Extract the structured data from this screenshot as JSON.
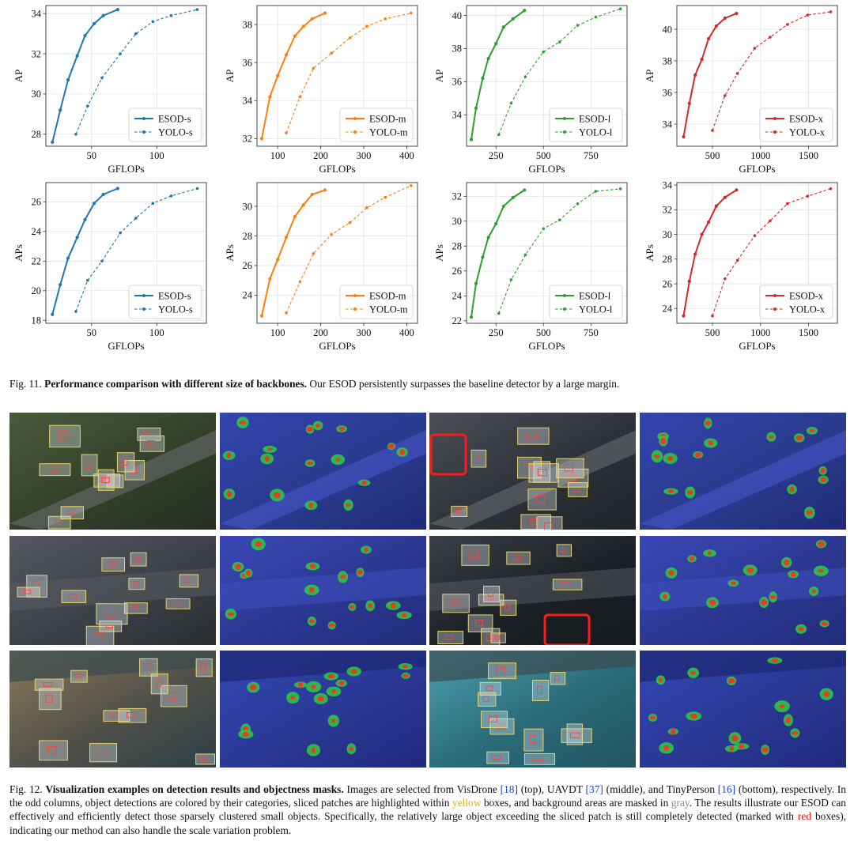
{
  "chart_data": [
    {
      "type": "line",
      "row": "top",
      "xlabel": "GFLOPs",
      "ylabel": "AP",
      "xlim": [
        15,
        138
      ],
      "ylim": [
        27.4,
        34.4
      ],
      "xticks": [
        50,
        100
      ],
      "yticks": [
        28,
        30,
        32,
        34
      ],
      "legend": "lower-right",
      "grid": true,
      "color": "#1f77b4",
      "series": [
        {
          "name": "ESOD-s",
          "style": "solid",
          "x": [
            20,
            26,
            32,
            39,
            45,
            52,
            59,
            70
          ],
          "y": [
            27.6,
            29.2,
            30.7,
            31.9,
            32.9,
            33.5,
            33.9,
            34.2
          ]
        },
        {
          "name": "YOLO-s",
          "style": "dashed",
          "x": [
            38,
            47,
            58,
            72,
            84,
            97,
            111,
            131
          ],
          "y": [
            28.0,
            29.4,
            30.8,
            32.0,
            33.0,
            33.6,
            33.9,
            34.2
          ]
        }
      ]
    },
    {
      "type": "line",
      "row": "top",
      "xlabel": "GFLOPs",
      "ylabel": "AP",
      "xlim": [
        52,
        425
      ],
      "ylim": [
        31.6,
        39.0
      ],
      "xticks": [
        100,
        200,
        300,
        400
      ],
      "yticks": [
        32,
        34,
        36,
        38
      ],
      "legend": "lower-right",
      "grid": true,
      "color": "#ff7f0e",
      "series": [
        {
          "name": "ESOD-m",
          "style": "solid",
          "x": [
            63,
            82,
            100,
            120,
            140,
            160,
            180,
            210
          ],
          "y": [
            32.0,
            34.2,
            35.3,
            36.4,
            37.4,
            37.9,
            38.3,
            38.6
          ]
        },
        {
          "name": "YOLO-m",
          "style": "dashed",
          "x": [
            120,
            152,
            183,
            225,
            268,
            307,
            350,
            410
          ],
          "y": [
            32.3,
            34.2,
            35.7,
            36.5,
            37.3,
            37.9,
            38.3,
            38.6
          ]
        }
      ]
    },
    {
      "type": "line",
      "row": "top",
      "xlabel": "GFLOPs",
      "ylabel": "AP",
      "xlim": [
        95,
        940
      ],
      "ylim": [
        32.1,
        40.6
      ],
      "xticks": [
        250,
        500,
        750
      ],
      "yticks": [
        34,
        36,
        38,
        40
      ],
      "legend": "lower-right",
      "grid": true,
      "color": "#2ca02c",
      "series": [
        {
          "name": "ESOD-l",
          "style": "solid",
          "x": [
            120,
            145,
            180,
            210,
            250,
            290,
            340,
            400
          ],
          "y": [
            32.5,
            34.4,
            36.2,
            37.4,
            38.3,
            39.3,
            39.8,
            40.3
          ]
        },
        {
          "name": "YOLO-l",
          "style": "dashed",
          "x": [
            265,
            330,
            405,
            500,
            585,
            680,
            775,
            905
          ],
          "y": [
            32.8,
            34.7,
            36.3,
            37.8,
            38.4,
            39.4,
            39.9,
            40.4
          ]
        }
      ]
    },
    {
      "type": "line",
      "row": "top",
      "xlabel": "GFLOPs",
      "ylabel": "AP",
      "xlim": [
        130,
        1800
      ],
      "ylim": [
        32.6,
        41.5
      ],
      "xticks": [
        500,
        1000,
        1500
      ],
      "yticks": [
        34,
        36,
        38,
        40
      ],
      "legend": "lower-right",
      "grid": true,
      "color": "#d62728",
      "series": [
        {
          "name": "ESOD-x",
          "style": "solid",
          "x": [
            200,
            260,
            320,
            390,
            460,
            540,
            630,
            750
          ],
          "y": [
            33.2,
            35.3,
            37.1,
            38.1,
            39.4,
            40.2,
            40.7,
            41.0
          ]
        },
        {
          "name": "YOLO-x",
          "style": "dashed",
          "x": [
            500,
            630,
            760,
            940,
            1100,
            1280,
            1490,
            1730
          ],
          "y": [
            33.6,
            35.8,
            37.2,
            38.8,
            39.5,
            40.3,
            40.9,
            41.1
          ]
        }
      ]
    },
    {
      "type": "line",
      "row": "bottom",
      "xlabel": "GFLOPs",
      "ylabel": "APs",
      "xlim": [
        15,
        138
      ],
      "ylim": [
        17.8,
        27.3
      ],
      "xticks": [
        50,
        100
      ],
      "yticks": [
        18,
        20,
        22,
        24,
        26
      ],
      "legend": "lower-right",
      "grid": true,
      "color": "#1f77b4",
      "series": [
        {
          "name": "ESOD-s",
          "style": "solid",
          "x": [
            20,
            26,
            32,
            39,
            45,
            52,
            59,
            70
          ],
          "y": [
            18.4,
            20.4,
            22.2,
            23.6,
            24.8,
            25.9,
            26.5,
            26.9
          ]
        },
        {
          "name": "YOLO-s",
          "style": "dashed",
          "x": [
            38,
            47,
            58,
            72,
            84,
            97,
            111,
            131
          ],
          "y": [
            18.6,
            20.7,
            22.0,
            23.9,
            24.9,
            25.9,
            26.4,
            26.9
          ]
        }
      ]
    },
    {
      "type": "line",
      "row": "bottom",
      "xlabel": "GFLOPs",
      "ylabel": "APs",
      "xlim": [
        52,
        425
      ],
      "ylim": [
        22.1,
        31.6
      ],
      "xticks": [
        100,
        200,
        300,
        400
      ],
      "yticks": [
        24,
        26,
        28,
        30
      ],
      "legend": "lower-right",
      "grid": true,
      "color": "#ff7f0e",
      "series": [
        {
          "name": "ESOD-m",
          "style": "solid",
          "x": [
            63,
            82,
            100,
            120,
            140,
            160,
            180,
            210
          ],
          "y": [
            22.6,
            25.1,
            26.4,
            27.9,
            29.3,
            30.1,
            30.8,
            31.1
          ]
        },
        {
          "name": "YOLO-m",
          "style": "dashed",
          "x": [
            120,
            152,
            183,
            225,
            268,
            307,
            350,
            410
          ],
          "y": [
            22.8,
            24.9,
            26.8,
            28.1,
            28.9,
            29.9,
            30.6,
            31.4
          ]
        }
      ]
    },
    {
      "type": "line",
      "row": "bottom",
      "xlabel": "GFLOPs",
      "ylabel": "APs",
      "xlim": [
        95,
        940
      ],
      "ylim": [
        21.8,
        33.1
      ],
      "xticks": [
        250,
        500,
        750
      ],
      "yticks": [
        22,
        24,
        26,
        28,
        30,
        32
      ],
      "legend": "lower-right",
      "grid": true,
      "color": "#2ca02c",
      "series": [
        {
          "name": "ESOD-l",
          "style": "solid",
          "x": [
            120,
            145,
            180,
            210,
            250,
            290,
            340,
            400
          ],
          "y": [
            22.3,
            25.0,
            27.1,
            28.7,
            29.8,
            31.2,
            31.9,
            32.5
          ]
        },
        {
          "name": "YOLO-l",
          "style": "dashed",
          "x": [
            265,
            330,
            405,
            500,
            585,
            680,
            775,
            905
          ],
          "y": [
            22.6,
            25.3,
            27.3,
            29.4,
            30.1,
            31.4,
            32.4,
            32.6
          ]
        }
      ]
    },
    {
      "type": "line",
      "row": "bottom",
      "xlabel": "GFLOPs",
      "ylabel": "APs",
      "xlim": [
        130,
        1800
      ],
      "ylim": [
        22.8,
        34.2
      ],
      "xticks": [
        500,
        1000,
        1500
      ],
      "yticks": [
        24,
        26,
        28,
        30,
        32,
        34
      ],
      "legend": "lower-right",
      "grid": true,
      "color": "#d62728",
      "series": [
        {
          "name": "ESOD-x",
          "style": "solid",
          "x": [
            200,
            260,
            320,
            390,
            460,
            540,
            630,
            750
          ],
          "y": [
            23.4,
            26.2,
            28.4,
            30.0,
            31.0,
            32.3,
            33.0,
            33.6
          ]
        },
        {
          "name": "YOLO-x",
          "style": "dashed",
          "x": [
            500,
            630,
            760,
            940,
            1100,
            1280,
            1490,
            1730
          ],
          "y": [
            23.4,
            26.4,
            27.9,
            29.9,
            31.1,
            32.5,
            33.1,
            33.7
          ]
        }
      ]
    }
  ],
  "figure11": {
    "label": "Fig. 11.",
    "title": "Performance comparison with different size of backbones.",
    "text": "Our ESOD persistently surpasses the baseline detector by a large margin."
  },
  "figure12": {
    "label": "Fig. 12.",
    "title": "Visualization examples on detection results and objectness masks.",
    "t1": "Images are selected from VisDrone ",
    "r1": "[18]",
    "t2": " (top), UAVDT ",
    "r2": "[37]",
    "t3": " (middle), and TinyPerson ",
    "r3": "[16]",
    "t4": " (bottom), respectively. In the odd columns, object detections are colored by their categories, sliced patches are highlighted within ",
    "yellow": "yellow",
    "t5": " boxes, and background areas are masked in ",
    "gray": "gray",
    "t6": ". The results illustrate our ESOD can effectively and efficiently detect those sparsely clustered small objects. Specifically, the relatively large object exceeding the sliced patch is still completely detected (marked with ",
    "red": "red",
    "t7": " boxes), indicating our method can also handle the scale variation problem."
  },
  "visualization": {
    "rows": [
      "VisDrone",
      "UAVDT",
      "TinyPerson"
    ],
    "columns": [
      "detections",
      "objectness-mask",
      "detections",
      "objectness-mask"
    ]
  }
}
